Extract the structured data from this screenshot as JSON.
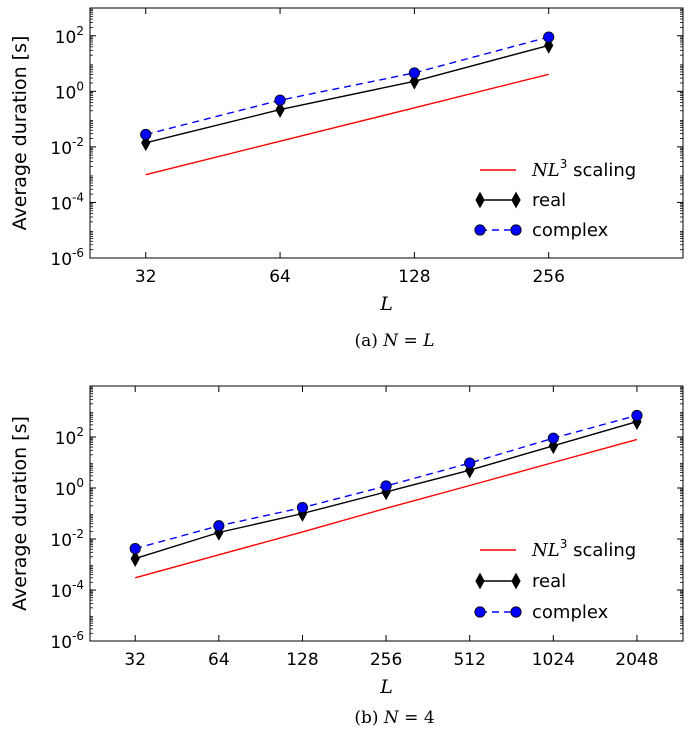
{
  "chart_data": [
    {
      "type": "line",
      "xscale": "log2",
      "yscale": "log10",
      "x": [
        32,
        64,
        128,
        256
      ],
      "xticks": [
        "32",
        "64",
        "128",
        "256"
      ],
      "xlim": [
        24,
        512
      ],
      "yticks": [
        "10^-6",
        "10^-4",
        "10^-2",
        "10^0",
        "10^2"
      ],
      "ylim": [
        1e-06,
        1000
      ],
      "xlabel": "L",
      "ylabel": "Average duration [s]",
      "caption": "(a)  N = L",
      "legend_position": "lower-right",
      "series": [
        {
          "name": "NL^3 scaling",
          "style": "solid",
          "marker": "none",
          "color": "#ff0000",
          "values": [
            0.001,
            0.016,
            0.256,
            4.1
          ]
        },
        {
          "name": "real",
          "style": "solid",
          "marker": "thin-diamond",
          "color": "#000000",
          "values": [
            0.014,
            0.22,
            2.3,
            45
          ]
        },
        {
          "name": "complex",
          "style": "dashed",
          "marker": "circle",
          "color": "#0000ff",
          "values": [
            0.028,
            0.48,
            4.6,
            90
          ]
        }
      ]
    },
    {
      "type": "line",
      "xscale": "log2",
      "yscale": "log10",
      "x": [
        32,
        64,
        128,
        256,
        512,
        1024,
        2048
      ],
      "xticks": [
        "32",
        "64",
        "128",
        "256",
        "512",
        "1024",
        "2048"
      ],
      "xlim": [
        22,
        3000
      ],
      "yticks": [
        "10^-6",
        "10^-4",
        "10^-2",
        "10^0",
        "10^2"
      ],
      "ylim": [
        1e-06,
        10000
      ],
      "xlabel": "L",
      "ylabel": "Average duration [s]",
      "caption": "(b)  N = 4",
      "legend_position": "lower-right",
      "series": [
        {
          "name": "NL^3 scaling",
          "style": "solid",
          "marker": "none",
          "color": "#ff0000",
          "values": [
            0.0003,
            0.0024,
            0.019,
            0.16,
            1.25,
            10,
            80
          ]
        },
        {
          "name": "real",
          "style": "solid",
          "marker": "thin-diamond",
          "color": "#000000",
          "values": [
            0.0017,
            0.018,
            0.1,
            0.7,
            5,
            45,
            400
          ]
        },
        {
          "name": "complex",
          "style": "dashed",
          "marker": "circle",
          "color": "#0000ff",
          "values": [
            0.0042,
            0.033,
            0.17,
            1.2,
            9.5,
            90,
            700
          ]
        }
      ]
    }
  ]
}
